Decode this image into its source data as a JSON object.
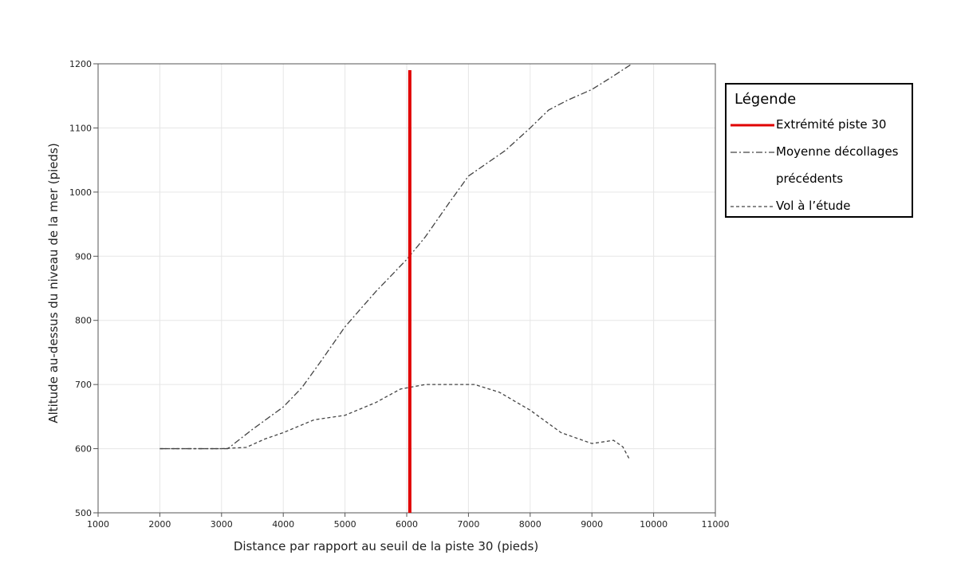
{
  "chart_data": {
    "type": "line",
    "xlabel": "Distance par rapport au seuil de la piste 30 (pieds)",
    "ylabel": "Altitude au-dessus du niveau de la mer (pieds)",
    "legend_title": "Légende",
    "xlim": [
      1000,
      11000
    ],
    "xticks": [
      1000,
      2000,
      3000,
      4000,
      5000,
      6000,
      7000,
      8000,
      9000,
      10000,
      11000
    ],
    "ylim": [
      500,
      1200
    ],
    "yticks": [
      500,
      600,
      700,
      800,
      900,
      1000,
      1100,
      1200
    ],
    "grid": true,
    "vline": {
      "name": "Extrémité piste 30",
      "color": "#e00000",
      "x": 6050,
      "y": [
        500,
        1190
      ]
    },
    "series": [
      {
        "name": "Moyenne décollages précédents",
        "color": "#444",
        "style": "dashdot",
        "x": [
          2000,
          3100,
          3500,
          4000,
          4300,
          4600,
          5000,
          5500,
          6000,
          6300,
          6700,
          7000,
          7300,
          7600,
          8000,
          8300,
          8600,
          9000,
          9300,
          9650
        ],
        "values": [
          600,
          600,
          630,
          665,
          695,
          735,
          790,
          845,
          895,
          930,
          985,
          1025,
          1045,
          1065,
          1100,
          1128,
          1143,
          1160,
          1178,
          1200
        ]
      },
      {
        "name": "Vol à l’étude",
        "color": "#444",
        "style": "dash",
        "x": [
          2000,
          3000,
          3400,
          3700,
          4000,
          4500,
          5000,
          5500,
          5900,
          6300,
          7100,
          7500,
          8000,
          8500,
          9000,
          9350,
          9500,
          9600
        ],
        "values": [
          600,
          600,
          602,
          615,
          625,
          645,
          652,
          672,
          693,
          700,
          700,
          688,
          660,
          625,
          608,
          613,
          603,
          585
        ]
      }
    ]
  }
}
